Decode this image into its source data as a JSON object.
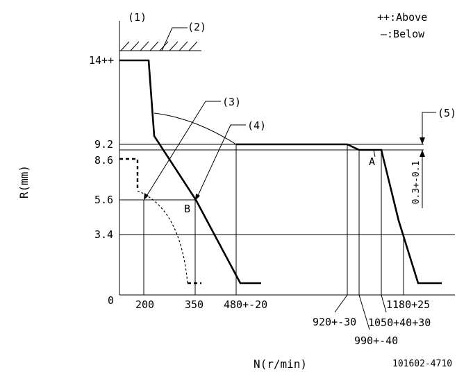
{
  "legend": {
    "above": "++:Above",
    "below": "—:Below"
  },
  "callouts": {
    "c1": "(1)",
    "c2": "(2)",
    "c3": "(3)",
    "c4": "(4)",
    "c5": "(5)"
  },
  "points": {
    "a": "A",
    "b": "B"
  },
  "y_axis": {
    "title": "R(mm)",
    "ticks": {
      "t14": "14++",
      "t92": "9.2",
      "t86": "8.6",
      "t56": "5.6",
      "t34": "3.4",
      "t0": "0"
    }
  },
  "x_axis": {
    "title": "N(r/min)",
    "ticks": {
      "t200": "200",
      "t350": "350",
      "t480": "480+-20",
      "t920": "920+-30",
      "t990": "990+-40",
      "t1050": "1050+40+30",
      "t1180": "1180+25"
    }
  },
  "dimension_label": "0.3+-0.1",
  "part_number": "101602-4710"
}
